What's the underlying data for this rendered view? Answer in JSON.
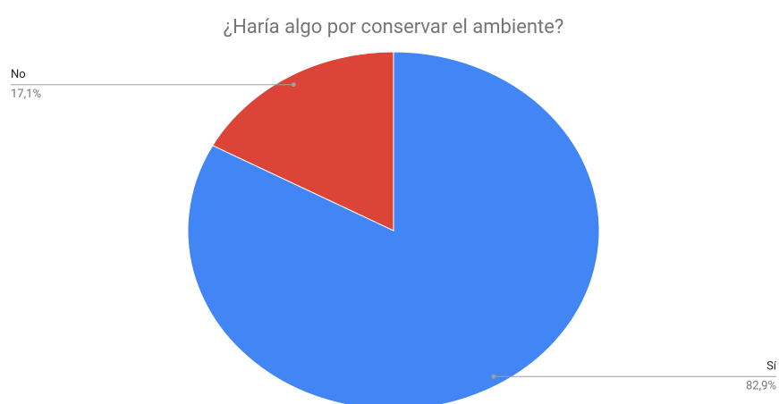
{
  "chart_data": {
    "type": "pie",
    "title": "¿Haría algo por conservar el ambiente?",
    "categories": [
      "Sí",
      "No"
    ],
    "values": [
      82.9,
      17.1
    ],
    "value_labels": [
      "82,9%",
      "17,1%"
    ],
    "colors": [
      "#4285f4",
      "#db4437"
    ]
  }
}
